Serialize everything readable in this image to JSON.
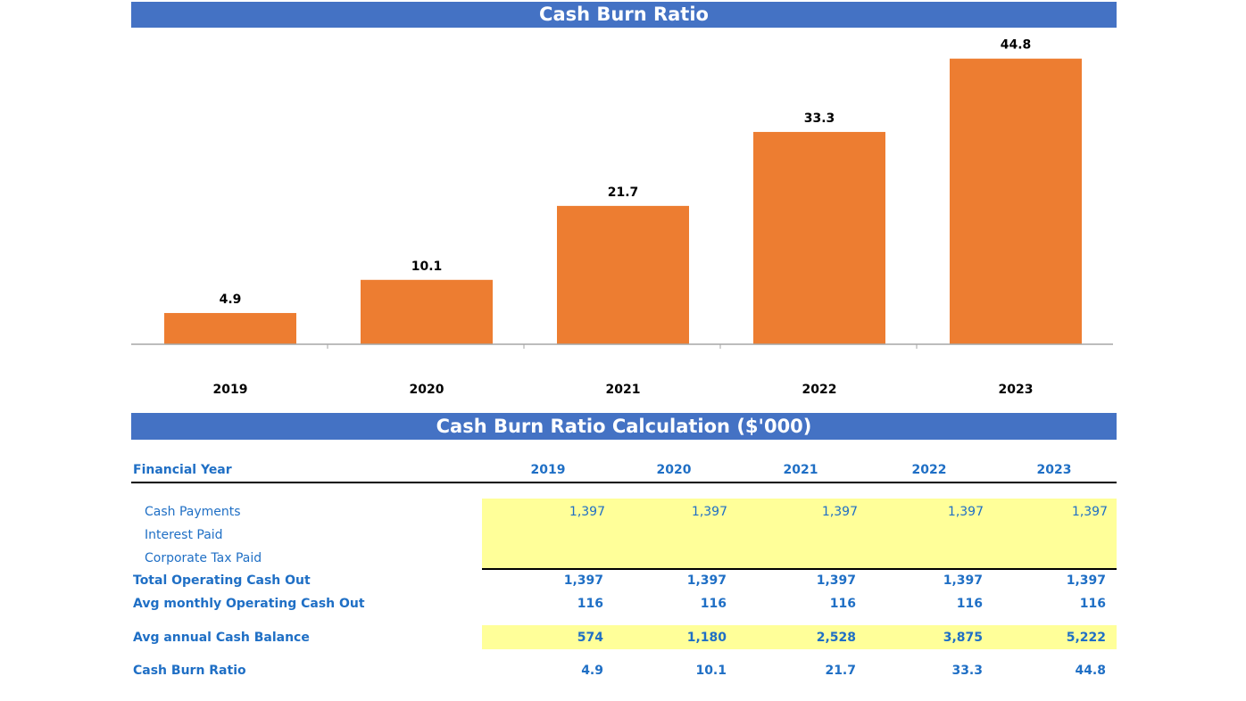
{
  "chart_data": {
    "type": "bar",
    "title": "Cash Burn Ratio",
    "categories": [
      "2019",
      "2020",
      "2021",
      "2022",
      "2023"
    ],
    "values": [
      4.9,
      10.1,
      21.7,
      33.3,
      44.8
    ],
    "data_labels": [
      "4.9",
      "10.1",
      "21.7",
      "33.3",
      "44.8"
    ],
    "ylim": [
      0,
      47
    ],
    "legend": "none",
    "grid": false,
    "bar_color": "#ED7D31"
  },
  "table": {
    "title": "Cash Burn Ratio Calculation ($'000)",
    "header_label": "Financial Year",
    "years": [
      "2019",
      "2020",
      "2021",
      "2022",
      "2023"
    ],
    "rows": [
      {
        "label": "Cash Payments",
        "values": [
          "1,397",
          "1,397",
          "1,397",
          "1,397",
          "1,397"
        ]
      },
      {
        "label": "Interest Paid",
        "values": [
          "",
          "",
          "",
          "",
          ""
        ]
      },
      {
        "label": "Corporate Tax Paid",
        "values": [
          "",
          "",
          "",
          "",
          ""
        ]
      },
      {
        "label": "Total Operating Cash Out",
        "values": [
          "1,397",
          "1,397",
          "1,397",
          "1,397",
          "1,397"
        ]
      },
      {
        "label": "Avg monthly Operating Cash Out",
        "values": [
          "116",
          "116",
          "116",
          "116",
          "116"
        ]
      },
      {
        "label": "Avg annual Cash Balance",
        "values": [
          "574",
          "1,180",
          "2,528",
          "3,875",
          "5,222"
        ]
      },
      {
        "label": "Cash Burn Ratio",
        "values": [
          "4.9",
          "10.1",
          "21.7",
          "33.3",
          "44.8"
        ]
      }
    ],
    "colors": {
      "header": "#4472C4",
      "text": "#1F6FC5",
      "input": "#FFFF99"
    }
  }
}
